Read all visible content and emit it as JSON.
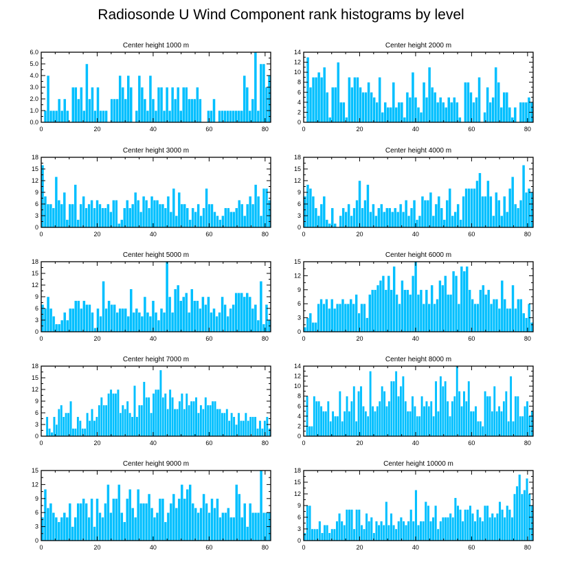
{
  "title": "Radiosonde U Wind Component rank histograms by level",
  "colors": {
    "bar": "#00bfff",
    "axis": "#000000"
  },
  "chart_data": [
    {
      "type": "bar",
      "title": "Center height 1000 m",
      "xlim": [
        0,
        82
      ],
      "ylim": [
        0,
        6
      ],
      "xticks": [
        "0",
        "20",
        "40",
        "60",
        "80"
      ],
      "yticks": [
        "0.0",
        "1.0",
        "2.0",
        "3.0",
        "4.0",
        "5.0",
        "6.0"
      ],
      "values": [
        0,
        1,
        4,
        1,
        1,
        1,
        2,
        1,
        2,
        1,
        0,
        3,
        3,
        2,
        3,
        1,
        5,
        2,
        3,
        1,
        3,
        1,
        1,
        1,
        0,
        2,
        2,
        2,
        4,
        3,
        2,
        4,
        3,
        0,
        1,
        4,
        3,
        2,
        1,
        4,
        2,
        1,
        3,
        3,
        1,
        3,
        1,
        3,
        2,
        3,
        1,
        3,
        3,
        2,
        2,
        2,
        3,
        2,
        0,
        0,
        1,
        1,
        2,
        0,
        1,
        1,
        1,
        1,
        1,
        1,
        1,
        1,
        1,
        4,
        3,
        1,
        2,
        6,
        1,
        5,
        5,
        3,
        4
      ]
    },
    {
      "type": "bar",
      "title": "Center height 2000 m",
      "xlim": [
        0,
        82
      ],
      "ylim": [
        0,
        14
      ],
      "xticks": [
        "0",
        "20",
        "40",
        "60",
        "80"
      ],
      "yticks": [
        "0",
        "2",
        "4",
        "6",
        "8",
        "10",
        "12",
        "14"
      ],
      "values": [
        0,
        13,
        7,
        9,
        9,
        10,
        9,
        11,
        6,
        1,
        7,
        7,
        12,
        4,
        4,
        1,
        9,
        7,
        9,
        9,
        7,
        6,
        6,
        8,
        6,
        5,
        4,
        9,
        2,
        4,
        3,
        3,
        8,
        3,
        4,
        4,
        1,
        6,
        5,
        10,
        5,
        3,
        2,
        8,
        5,
        11,
        7,
        6,
        4,
        5,
        4,
        3,
        5,
        4,
        5,
        4,
        1,
        0,
        8,
        8,
        6,
        4,
        5,
        9,
        0,
        2,
        7,
        4,
        5,
        11,
        8,
        3,
        6,
        6,
        3,
        1,
        3,
        0,
        4,
        4,
        4,
        5,
        4
      ]
    },
    {
      "type": "bar",
      "title": "Center height 3000 m",
      "xlim": [
        0,
        82
      ],
      "ylim": [
        0,
        18
      ],
      "xticks": [
        "0",
        "20",
        "40",
        "60",
        "80"
      ],
      "yticks": [
        "0",
        "3",
        "6",
        "9",
        "12",
        "15",
        "18"
      ],
      "values": [
        16,
        8,
        6,
        6,
        5,
        13,
        7,
        6,
        9,
        2,
        6,
        6,
        11,
        2,
        6,
        8,
        5,
        6,
        7,
        5,
        7,
        6,
        5,
        5,
        6,
        4,
        7,
        7,
        1,
        2,
        5,
        7,
        5,
        6,
        9,
        7,
        4,
        8,
        7,
        5,
        8,
        7,
        7,
        6,
        6,
        5,
        8,
        4,
        10,
        3,
        9,
        6,
        6,
        5,
        2,
        5,
        4,
        6,
        3,
        5,
        10,
        6,
        6,
        4,
        3,
        2,
        3,
        5,
        5,
        4,
        4,
        5,
        7,
        6,
        3,
        6,
        8,
        6,
        11,
        8,
        3,
        10,
        10,
        7
      ]
    },
    {
      "type": "bar",
      "title": "Center height 4000 m",
      "xlim": [
        0,
        82
      ],
      "ylim": [
        0,
        18
      ],
      "xticks": [
        "0",
        "20",
        "40",
        "60",
        "80"
      ],
      "yticks": [
        "0",
        "3",
        "6",
        "9",
        "12",
        "15",
        "18"
      ],
      "values": [
        8,
        11,
        10,
        8,
        5,
        3,
        6,
        8,
        2,
        1,
        5,
        1,
        0,
        3,
        5,
        4,
        6,
        3,
        5,
        7,
        12,
        5,
        7,
        11,
        4,
        6,
        3,
        5,
        6,
        4,
        5,
        5,
        4,
        5,
        4,
        6,
        4,
        7,
        3,
        5,
        7,
        2,
        3,
        8,
        7,
        7,
        9,
        3,
        6,
        8,
        5,
        2,
        7,
        10,
        3,
        4,
        6,
        2,
        8,
        10,
        10,
        10,
        10,
        12,
        14,
        8,
        8,
        12,
        8,
        3,
        9,
        7,
        3,
        8,
        4,
        10,
        13,
        6,
        5,
        7,
        16,
        9,
        10,
        9
      ]
    },
    {
      "type": "bar",
      "title": "Center height 5000 m",
      "xlim": [
        0,
        82
      ],
      "ylim": [
        0,
        18
      ],
      "xticks": [
        "0",
        "20",
        "40",
        "60",
        "80"
      ],
      "yticks": [
        "0",
        "3",
        "6",
        "9",
        "12",
        "15",
        "18"
      ],
      "values": [
        7,
        6,
        9,
        6,
        4,
        2,
        2,
        3,
        5,
        3,
        6,
        6,
        8,
        8,
        6,
        8,
        7,
        7,
        5,
        1,
        6,
        4,
        13,
        6,
        8,
        7,
        7,
        5,
        6,
        6,
        6,
        4,
        11,
        5,
        6,
        5,
        4,
        9,
        5,
        4,
        8,
        5,
        3,
        6,
        5,
        18,
        9,
        5,
        11,
        12,
        8,
        9,
        10,
        5,
        11,
        8,
        8,
        6,
        9,
        7,
        9,
        5,
        6,
        4,
        5,
        9,
        7,
        4,
        6,
        7,
        10,
        10,
        10,
        9,
        10,
        9,
        6,
        7,
        3,
        13,
        2,
        7,
        3
      ]
    },
    {
      "type": "bar",
      "title": "Center height 6000 m",
      "xlim": [
        0,
        82
      ],
      "ylim": [
        0,
        15
      ],
      "xticks": [
        "0",
        "20",
        "40",
        "60",
        "80"
      ],
      "yticks": [
        "0",
        "3",
        "6",
        "9",
        "12",
        "15"
      ],
      "values": [
        1,
        3,
        4,
        2,
        2,
        6,
        7,
        6,
        7,
        5,
        7,
        5,
        6,
        6,
        7,
        6,
        6,
        7,
        6,
        8,
        4,
        6,
        6,
        3,
        8,
        9,
        9,
        10,
        11,
        12,
        9,
        12,
        9,
        14,
        8,
        6,
        11,
        9,
        9,
        8,
        12,
        15,
        8,
        9,
        6,
        9,
        6,
        10,
        6,
        7,
        11,
        10,
        12,
        8,
        8,
        13,
        12,
        6,
        14,
        13,
        14,
        9,
        7,
        6,
        6,
        9,
        10,
        8,
        9,
        6,
        7,
        7,
        5,
        11,
        7,
        5,
        5,
        10,
        5,
        7,
        7,
        4,
        3,
        6,
        2
      ]
    },
    {
      "type": "bar",
      "title": "Center height 7000 m",
      "xlim": [
        0,
        82
      ],
      "ylim": [
        0,
        18
      ],
      "xticks": [
        "0",
        "20",
        "40",
        "60",
        "80"
      ],
      "yticks": [
        "0",
        "3",
        "6",
        "9",
        "12",
        "15",
        "18"
      ],
      "values": [
        0,
        0,
        5,
        2,
        1,
        5,
        3,
        7,
        8,
        5,
        6,
        6,
        9,
        2,
        2,
        5,
        4,
        2,
        2,
        6,
        4,
        7,
        4,
        5,
        8,
        10,
        8,
        8,
        11,
        12,
        11,
        11,
        12,
        6,
        8,
        7,
        9,
        6,
        5,
        13,
        5,
        8,
        8,
        14,
        10,
        10,
        6,
        11,
        12,
        12,
        17,
        10,
        11,
        7,
        12,
        10,
        7,
        7,
        9,
        11,
        7,
        11,
        8,
        9,
        9,
        10,
        6,
        8,
        7,
        10,
        8,
        8,
        9,
        9,
        7,
        7,
        6,
        6,
        7,
        4,
        6,
        5,
        3,
        6,
        4,
        4,
        6,
        4,
        5,
        5,
        5,
        2,
        4,
        2,
        4,
        5,
        2
      ]
    },
    {
      "type": "bar",
      "title": "Center height 8000 m",
      "xlim": [
        0,
        82
      ],
      "ylim": [
        0,
        14
      ],
      "xticks": [
        "0",
        "20",
        "40",
        "60",
        "80"
      ],
      "yticks": [
        "0",
        "2",
        "4",
        "6",
        "8",
        "10",
        "12",
        "14"
      ],
      "values": [
        0,
        8,
        2,
        2,
        8,
        7,
        7,
        6,
        5,
        5,
        7,
        3,
        5,
        4,
        4,
        9,
        3,
        5,
        8,
        5,
        7,
        10,
        3,
        9,
        10,
        6,
        5,
        4,
        13,
        6,
        5,
        6,
        7,
        10,
        9,
        6,
        7,
        11,
        11,
        13,
        8,
        10,
        12,
        7,
        5,
        5,
        8,
        6,
        4,
        4,
        8,
        6,
        7,
        6,
        7,
        4,
        11,
        5,
        12,
        10,
        11,
        7,
        4,
        7,
        8,
        14,
        9,
        6,
        9,
        7,
        11,
        5,
        5,
        6,
        3,
        3,
        2,
        9,
        8,
        8,
        5,
        10,
        5,
        6,
        5,
        7,
        9,
        3,
        12,
        3,
        8,
        8,
        4,
        4,
        6,
        7,
        4,
        5
      ]
    },
    {
      "type": "bar",
      "title": "Center height 9000 m",
      "xlim": [
        0,
        82
      ],
      "ylim": [
        0,
        15
      ],
      "xticks": [
        "0",
        "20",
        "40",
        "60",
        "80"
      ],
      "yticks": [
        "0",
        "3",
        "6",
        "9",
        "12",
        "15"
      ],
      "values": [
        5,
        11,
        7,
        8,
        6,
        5,
        4,
        5,
        6,
        5,
        8,
        3,
        5,
        8,
        8,
        9,
        8,
        5,
        9,
        3,
        9,
        6,
        5,
        8,
        12,
        6,
        9,
        9,
        12,
        6,
        4,
        9,
        11,
        7,
        5,
        11,
        8,
        8,
        8,
        10,
        7,
        5,
        6,
        9,
        9,
        4,
        6,
        8,
        10,
        7,
        9,
        12,
        9,
        11,
        12,
        8,
        7,
        6,
        7,
        10,
        8,
        6,
        9,
        7,
        9,
        5,
        6,
        6,
        7,
        5,
        5,
        12,
        10,
        5,
        8,
        3,
        8,
        6,
        6,
        6,
        15,
        6,
        6,
        6
      ]
    },
    {
      "type": "bar",
      "title": "Center height 10000 m",
      "xlim": [
        0,
        82
      ],
      "ylim": [
        0,
        18
      ],
      "xticks": [
        "0",
        "20",
        "40",
        "60",
        "80"
      ],
      "yticks": [
        "0",
        "3",
        "6",
        "9",
        "12",
        "15",
        "18"
      ],
      "values": [
        2,
        9,
        9,
        3,
        3,
        3,
        5,
        2,
        4,
        4,
        2,
        3,
        3,
        5,
        7,
        5,
        4,
        8,
        8,
        8,
        3,
        8,
        8,
        4,
        3,
        7,
        5,
        6,
        2,
        5,
        4,
        5,
        4,
        10,
        4,
        7,
        4,
        3,
        5,
        6,
        5,
        4,
        5,
        8,
        5,
        13,
        4,
        5,
        5,
        10,
        9,
        5,
        6,
        9,
        3,
        5,
        6,
        6,
        6,
        7,
        6,
        11,
        9,
        8,
        5,
        8,
        8,
        9,
        7,
        5,
        8,
        6,
        5,
        9,
        9,
        6,
        7,
        6,
        7,
        10,
        8,
        6,
        9,
        8,
        6,
        12,
        14,
        17,
        12,
        13,
        16,
        12,
        9
      ]
    }
  ]
}
